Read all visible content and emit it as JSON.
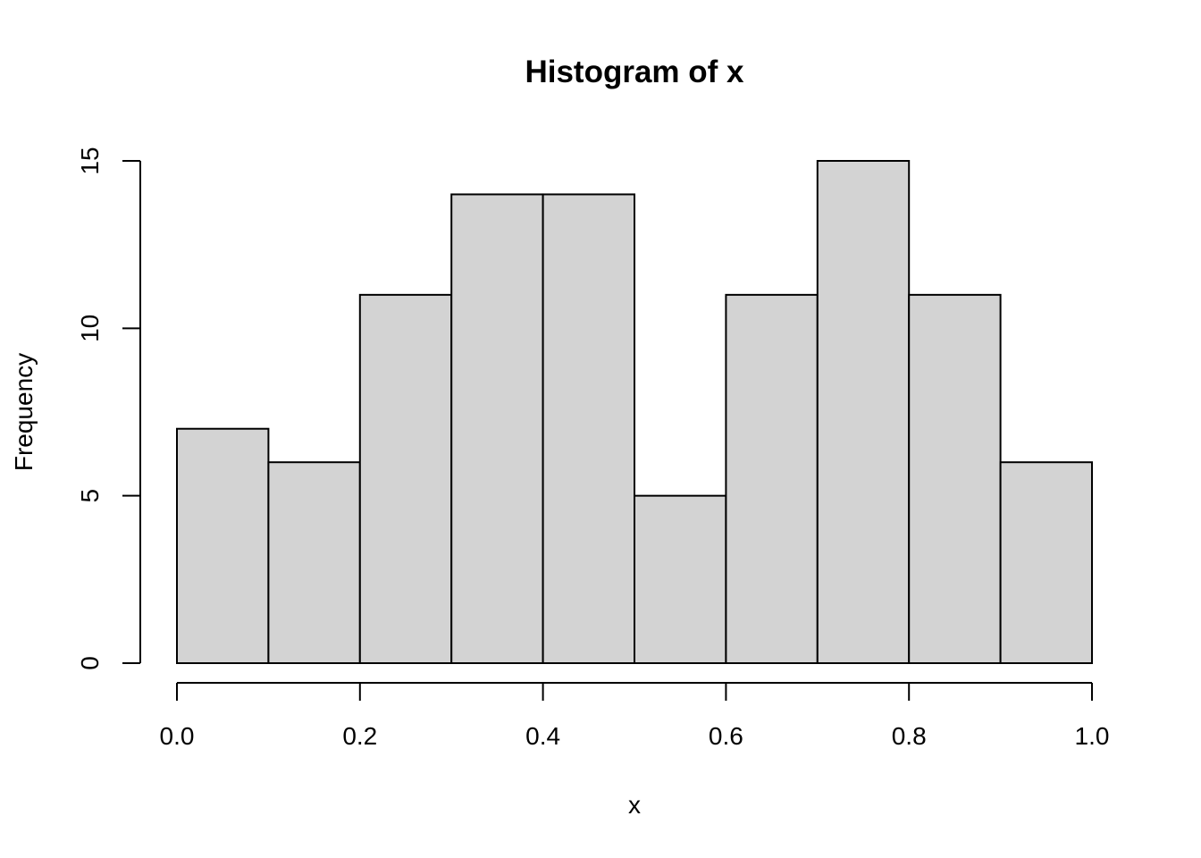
{
  "chart_data": {
    "type": "bar",
    "title": "Histogram of x",
    "xlabel": "x",
    "ylabel": "Frequency",
    "bins": [
      {
        "from": 0.0,
        "to": 0.1,
        "count": 7
      },
      {
        "from": 0.1,
        "to": 0.2,
        "count": 6
      },
      {
        "from": 0.2,
        "to": 0.3,
        "count": 11
      },
      {
        "from": 0.3,
        "to": 0.4,
        "count": 14
      },
      {
        "from": 0.4,
        "to": 0.5,
        "count": 14
      },
      {
        "from": 0.5,
        "to": 0.6,
        "count": 5
      },
      {
        "from": 0.6,
        "to": 0.7,
        "count": 11
      },
      {
        "from": 0.7,
        "to": 0.8,
        "count": 15
      },
      {
        "from": 0.8,
        "to": 0.9,
        "count": 11
      },
      {
        "from": 0.9,
        "to": 1.0,
        "count": 6
      }
    ],
    "xlim": [
      0,
      1
    ],
    "ylim": [
      0,
      15
    ],
    "x_ticks": [
      0.0,
      0.2,
      0.4,
      0.6,
      0.8,
      1.0
    ],
    "x_tick_labels": [
      "0.0",
      "0.2",
      "0.4",
      "0.6",
      "0.8",
      "1.0"
    ],
    "y_ticks": [
      0,
      5,
      10,
      15
    ],
    "y_tick_labels": [
      "0",
      "5",
      "10",
      "15"
    ],
    "bar_fill": "#d3d3d3",
    "grid": false,
    "legend": "none"
  }
}
